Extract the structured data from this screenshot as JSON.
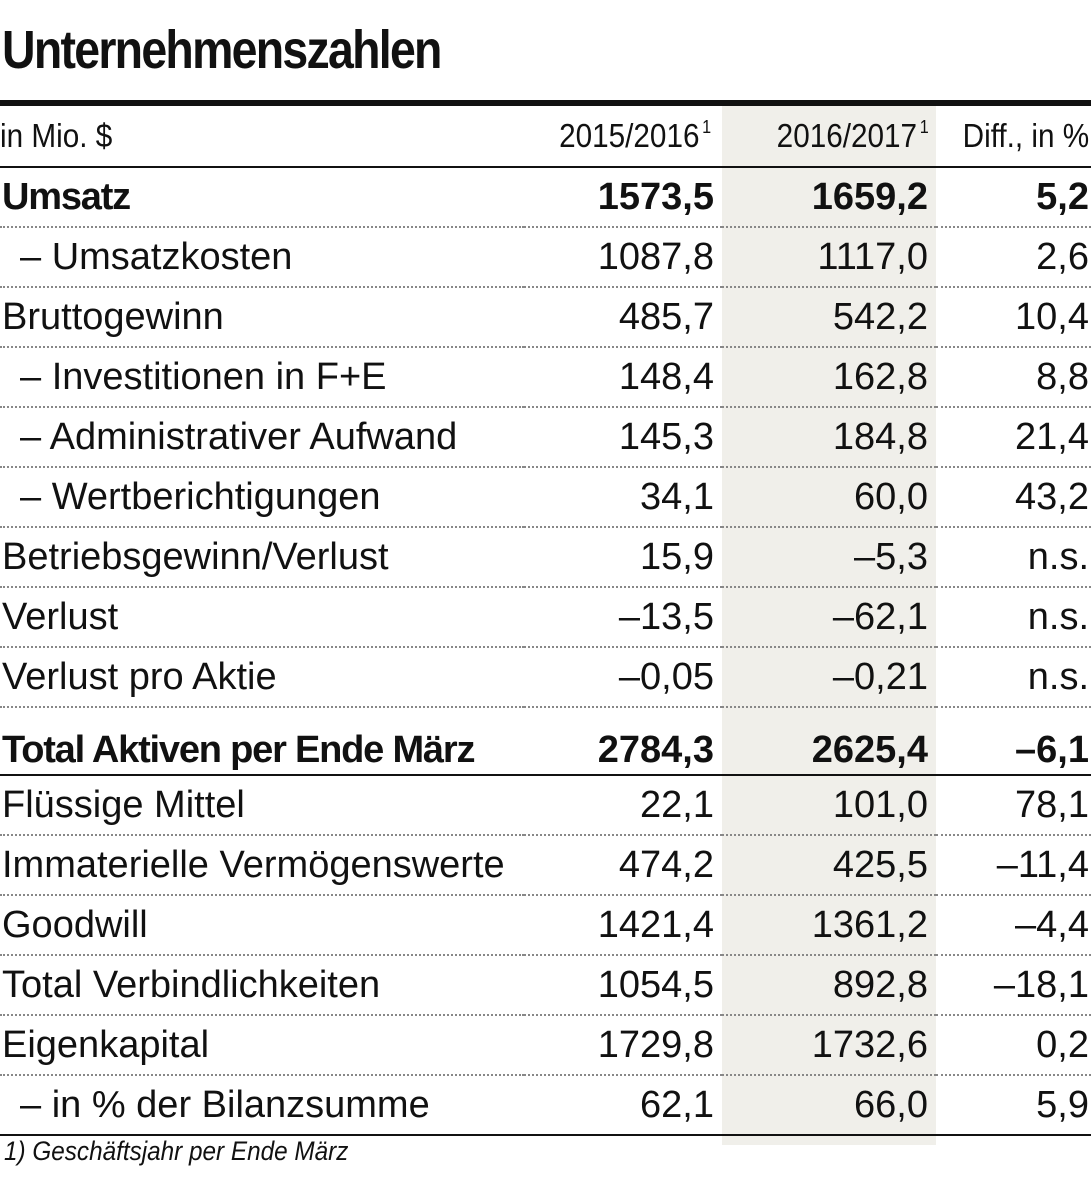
{
  "chart_data": {
    "type": "table",
    "title": "Unternehmenszahlen",
    "header": {
      "label": "in Mio. $",
      "y1": "2015/2016",
      "y2": "2016/2017",
      "diff": "Diff., in %",
      "footnote_mark": "1"
    },
    "rows": [
      {
        "label": "Umsatz",
        "y1": "1573,5",
        "y2": "1659,2",
        "diff": "5,2"
      },
      {
        "label": "– Umsatzkosten",
        "y1": "1087,8",
        "y2": "1117,0",
        "diff": "2,6"
      },
      {
        "label": "Bruttogewinn",
        "y1": "485,7",
        "y2": "542,2",
        "diff": "10,4"
      },
      {
        "label": "– Investitionen in F+E",
        "y1": "148,4",
        "y2": "162,8",
        "diff": "8,8"
      },
      {
        "label": "– Administrativer Aufwand",
        "y1": "145,3",
        "y2": "184,8",
        "diff": "21,4"
      },
      {
        "label": "– Wertberichtigungen",
        "y1": "34,1",
        "y2": "60,0",
        "diff": "43,2"
      },
      {
        "label": "Betriebsgewinn/Verlust",
        "y1": "15,9",
        "y2": "–5,3",
        "diff": "n.s."
      },
      {
        "label": "Verlust",
        "y1": "–13,5",
        "y2": "–62,1",
        "diff": "n.s."
      },
      {
        "label": "Verlust pro Aktie",
        "y1": "–0,05",
        "y2": "–0,21",
        "diff": "n.s."
      },
      {
        "label": "Total Aktiven per Ende März",
        "y1": "2784,3",
        "y2": "2625,4",
        "diff": "–6,1"
      },
      {
        "label": "Flüssige Mittel",
        "y1": "22,1",
        "y2": "101,0",
        "diff": "78,1"
      },
      {
        "label": "Immaterielle Vermögenswerte",
        "y1": "474,2",
        "y2": "425,5",
        "diff": "–11,4"
      },
      {
        "label": "Goodwill",
        "y1": "1421,4",
        "y2": "1361,2",
        "diff": "–4,4"
      },
      {
        "label": "Total Verbindlichkeiten",
        "y1": "1054,5",
        "y2": "892,8",
        "diff": "–18,1"
      },
      {
        "label": "Eigenkapital",
        "y1": "1729,8",
        "y2": "1732,6",
        "diff": "0,2"
      },
      {
        "label": "– in % der Bilanzsumme",
        "y1": "62,1",
        "y2": "66,0",
        "diff": "5,9"
      }
    ],
    "footnote": "1) Geschäftsjahr per Ende März",
    "highlight_column_color": "#f0efea"
  }
}
